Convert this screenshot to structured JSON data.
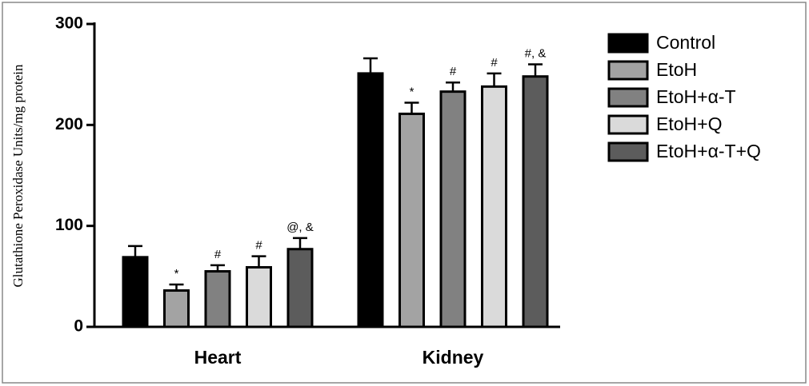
{
  "chart_data": {
    "type": "bar",
    "ylabel": "Glutathione Peroxidase Units/mg protein",
    "categories": [
      "Heart",
      "Kidney"
    ],
    "series": [
      {
        "name": "Control",
        "color": "#000000",
        "values": [
          69,
          251
        ],
        "errors": [
          11,
          15
        ],
        "annotations": [
          null,
          null
        ]
      },
      {
        "name": "EtoH",
        "color": "#a3a3a3",
        "values": [
          36,
          211
        ],
        "errors": [
          6,
          11
        ],
        "annotations": [
          "*",
          "*"
        ]
      },
      {
        "name": "EtoH+α-T",
        "color": "#818181",
        "values": [
          55,
          233
        ],
        "errors": [
          6,
          9
        ],
        "annotations": [
          "#",
          "#"
        ]
      },
      {
        "name": "EtoH+Q",
        "color": "#dadada",
        "values": [
          59,
          238
        ],
        "errors": [
          11,
          13
        ],
        "annotations": [
          "#",
          "#"
        ]
      },
      {
        "name": "EtoH+α-T+Q",
        "color": "#5c5c5c",
        "values": [
          77,
          248
        ],
        "errors": [
          11,
          12
        ],
        "annotations": [
          "@, &",
          "#, &"
        ]
      }
    ],
    "ylim": [
      0,
      300
    ],
    "yticks": [
      0,
      100,
      200,
      300
    ],
    "grid": false,
    "legend": "right"
  }
}
